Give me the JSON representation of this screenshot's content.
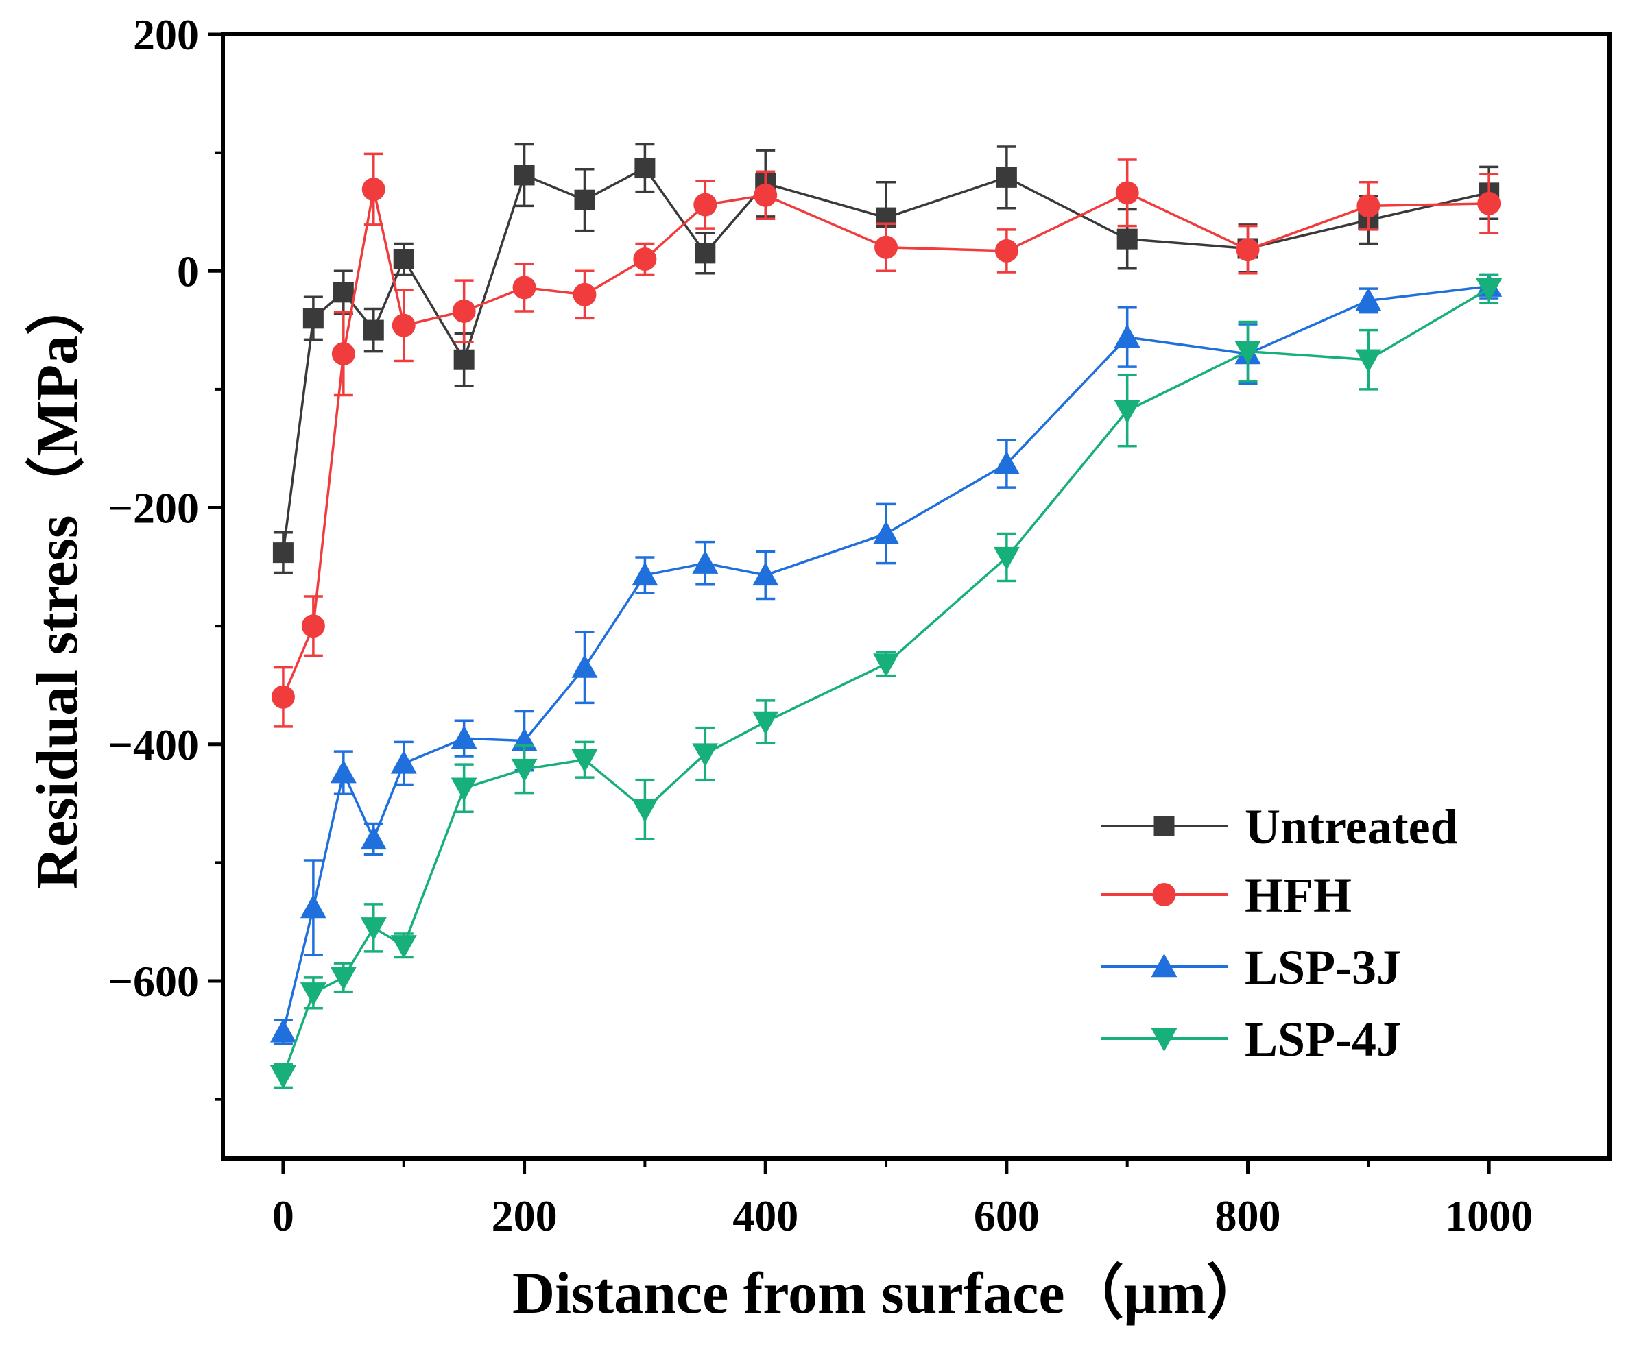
{
  "chart_data": {
    "type": "line",
    "xlabel": "Distance from surface（μm）",
    "ylabel": "Residual stress（MPa）",
    "xlim": [
      -50,
      1100
    ],
    "ylim": [
      -750,
      200
    ],
    "x_ticks": [
      0,
      200,
      400,
      600,
      800,
      1000
    ],
    "y_ticks": [
      200,
      0,
      -200,
      -400,
      -600
    ],
    "x_tick_labels": [
      "0",
      "200",
      "400",
      "600",
      "800",
      "1000"
    ],
    "y_tick_labels": [
      "200",
      "0",
      "−200",
      "−400",
      "−600"
    ],
    "legend_position": "lower-right",
    "series": [
      {
        "name": "Untreated",
        "color": "#3a3a3a",
        "marker": "square",
        "x": [
          0,
          25,
          50,
          75,
          100,
          150,
          200,
          250,
          300,
          350,
          400,
          500,
          600,
          700,
          800,
          900,
          1000
        ],
        "y": [
          -238,
          -40,
          -18,
          -50,
          10,
          -75,
          81,
          60,
          87,
          15,
          74,
          45,
          79,
          27,
          19,
          43,
          66
        ],
        "err": [
          17,
          18,
          18,
          18,
          13,
          22,
          26,
          26,
          20,
          17,
          28,
          30,
          26,
          25,
          20,
          20,
          22
        ]
      },
      {
        "name": "HFH",
        "color": "#f03c3c",
        "marker": "circle",
        "x": [
          0,
          25,
          50,
          75,
          100,
          150,
          200,
          250,
          300,
          350,
          400,
          500,
          600,
          700,
          800,
          900,
          1000
        ],
        "y": [
          -360,
          -300,
          -70,
          69,
          -46,
          -34,
          -14,
          -20,
          10,
          56,
          64,
          20,
          17,
          66,
          18,
          55,
          57
        ],
        "err": [
          25,
          25,
          35,
          30,
          30,
          26,
          20,
          20,
          13,
          20,
          20,
          20,
          18,
          28,
          20,
          20,
          25
        ]
      },
      {
        "name": "LSP-3J",
        "color": "#1f6fdc",
        "marker": "triangle-up",
        "x": [
          0,
          25,
          50,
          75,
          100,
          150,
          200,
          250,
          300,
          350,
          400,
          500,
          600,
          700,
          800,
          900,
          1000
        ],
        "y": [
          -643,
          -538,
          -424,
          -480,
          -416,
          -395,
          -397,
          -335,
          -257,
          -247,
          -257,
          -222,
          -163,
          -56,
          -70,
          -25,
          -13
        ],
        "err": [
          10,
          40,
          18,
          13,
          18,
          15,
          25,
          30,
          15,
          18,
          20,
          25,
          20,
          25,
          25,
          10,
          10
        ]
      },
      {
        "name": "LSP-4J",
        "color": "#17b07a",
        "marker": "triangle-down",
        "x": [
          0,
          25,
          50,
          75,
          100,
          150,
          200,
          250,
          300,
          350,
          400,
          500,
          600,
          700,
          800,
          900,
          1000
        ],
        "y": [
          -680,
          -610,
          -597,
          -555,
          -570,
          -437,
          -421,
          -413,
          -455,
          -408,
          -381,
          -332,
          -242,
          -118,
          -68,
          -75,
          -15
        ],
        "err": [
          10,
          13,
          12,
          20,
          10,
          20,
          20,
          15,
          25,
          22,
          18,
          10,
          20,
          30,
          25,
          25,
          12
        ]
      }
    ]
  }
}
